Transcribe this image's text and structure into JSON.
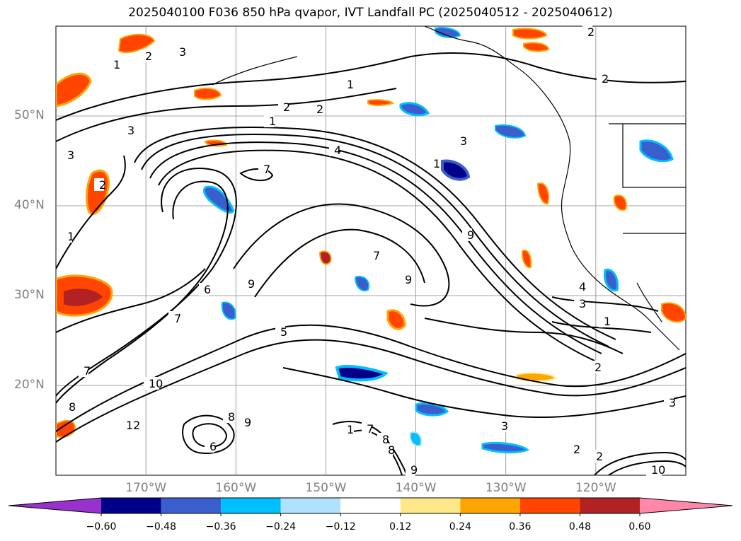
{
  "title": "2025040100 F036 850 hPa qvapor, IVT Landfall PC (2025040512 - 2025040612)",
  "map": {
    "projection": "lat-lon",
    "lon_range": [
      -180,
      -110
    ],
    "lat_range": [
      10,
      60
    ],
    "gridlines": true,
    "lat_ticks": [
      {
        "value": 50,
        "label": "50°N"
      },
      {
        "value": 40,
        "label": "40°N"
      },
      {
        "value": 30,
        "label": "30°N"
      },
      {
        "value": 20,
        "label": "20°N"
      }
    ],
    "lon_ticks": [
      {
        "value": -170,
        "label": "170°W"
      },
      {
        "value": -160,
        "label": "160°W"
      },
      {
        "value": -150,
        "label": "150°W"
      },
      {
        "value": -140,
        "label": "140°W"
      },
      {
        "value": -130,
        "label": "130°W"
      },
      {
        "value": -120,
        "label": "120°W"
      }
    ],
    "contour_labels": [
      "1",
      "2",
      "3",
      "4",
      "5",
      "6",
      "7",
      "8",
      "9",
      "10",
      "12"
    ]
  },
  "colorbar": {
    "ticks": [
      "−0.60",
      "−0.48",
      "−0.36",
      "−0.24",
      "−0.12",
      "0.12",
      "0.24",
      "0.36",
      "0.48",
      "0.60"
    ],
    "colors": [
      "#9932cc",
      "#00008b",
      "#3a5fcd",
      "#00bfff",
      "#b0e2ff",
      "#ffffff",
      "#ffe88a",
      "#ffa500",
      "#ff4500",
      "#b22222",
      "#ff88aa"
    ],
    "extend": "both"
  }
}
